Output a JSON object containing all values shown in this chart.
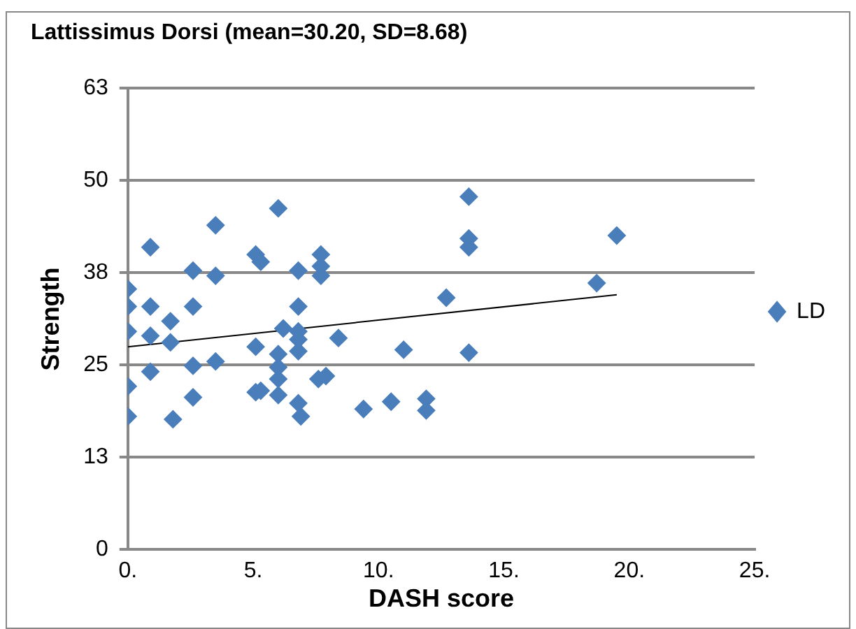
{
  "chart_data": {
    "type": "scatter",
    "title": "Lattissimus Dorsi (mean=30.20, SD=8.68)",
    "xlabel": "DASH score",
    "ylabel": "Strength",
    "xlim": [
      0,
      25
    ],
    "xticks": [
      {
        "value": 0,
        "label": "0."
      },
      {
        "value": 5,
        "label": "5."
      },
      {
        "value": 10,
        "label": "10."
      },
      {
        "value": 15,
        "label": "15."
      },
      {
        "value": 20,
        "label": "20."
      },
      {
        "value": 25,
        "label": "25."
      }
    ],
    "ylim": [
      0,
      63
    ],
    "yticks": [
      0,
      {
        "value": 12.6,
        "label": "13"
      },
      {
        "value": 25.2,
        "label": "25"
      },
      {
        "value": 37.8,
        "label": "38"
      },
      {
        "value": 50.4,
        "label": "50"
      },
      63
    ],
    "grid": "y",
    "legend": "right",
    "marker": "diamond",
    "series": [
      {
        "name": "LD",
        "color": "#4a7ebb",
        "x": [
          0,
          0,
          0,
          0,
          0,
          0.9,
          0.9,
          0.9,
          0.9,
          1.7,
          1.7,
          1.8,
          2.6,
          2.6,
          2.6,
          2.6,
          3.5,
          3.5,
          3.5,
          5.1,
          5.3,
          5.1,
          5.1,
          5.3,
          6.0,
          6.0,
          6.0,
          6.0,
          6.0,
          6.2,
          6.8,
          6.8,
          6.8,
          6.8,
          6.8,
          6.8,
          6.9,
          7.7,
          7.7,
          7.7,
          7.6,
          7.9,
          8.4,
          9.4,
          10.5,
          11.0,
          11.9,
          11.9,
          12.7,
          13.6,
          13.6,
          13.6,
          13.6,
          18.7,
          19.5
        ],
        "values": [
          35.6,
          33.2,
          29.8,
          22.3,
          18.2,
          41.3,
          33.2,
          29.2,
          24.3,
          31.2,
          28.3,
          17.8,
          38.1,
          33.2,
          25.1,
          20.8,
          44.3,
          37.4,
          25.7,
          40.3,
          39.3,
          27.7,
          21.5,
          21.7,
          46.6,
          26.7,
          24.9,
          23.3,
          21.1,
          30.2,
          38.1,
          33.2,
          29.8,
          28.7,
          27.1,
          20.0,
          18.2,
          40.3,
          38.7,
          37.4,
          23.3,
          23.7,
          28.9,
          19.2,
          20.2,
          27.3,
          20.6,
          19.0,
          34.4,
          48.2,
          42.5,
          41.3,
          26.9,
          36.4,
          42.9
        ]
      },
      {
        "type": "line",
        "color": "#000000",
        "marker": "none",
        "x": [
          0,
          19.5
        ],
        "values": [
          27.7,
          34.8
        ]
      }
    ]
  }
}
